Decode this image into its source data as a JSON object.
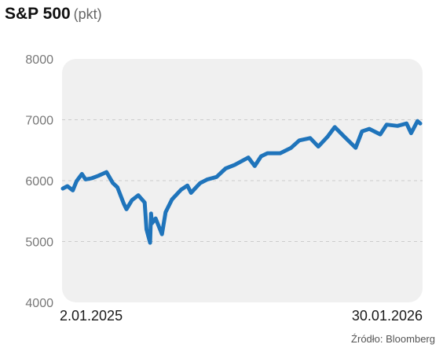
{
  "title": {
    "main": "S&P 500",
    "unit": "(pkt)"
  },
  "source": "Źródło: Bloomberg",
  "colors": {
    "line": "#1f74bb",
    "plot_bg": "#f0f0f0",
    "grid": "#cccccc",
    "tick_text": "#777777",
    "date_text": "#1a1a1a"
  },
  "chart_data": {
    "type": "line",
    "title": "S&P 500",
    "ylabel": "(pkt)",
    "xlabel": "",
    "ylim": [
      4000,
      8000
    ],
    "yticks": [
      4000,
      5000,
      6000,
      7000,
      8000
    ],
    "xlim": [
      "2025-01-02",
      "2026-01-30"
    ],
    "x_tick_labels": [
      "2.01.2025",
      "30.01.2026"
    ],
    "grid": "horizontal dashed",
    "series": [
      {
        "x": [
          "2025-01-02",
          "2025-01-07",
          "2025-01-13",
          "2025-01-17",
          "2025-01-23",
          "2025-01-27",
          "2025-02-03",
          "2025-02-10",
          "2025-02-19",
          "2025-02-26",
          "2025-03-03",
          "2025-03-10",
          "2025-03-13",
          "2025-03-19",
          "2025-03-26",
          "2025-04-02",
          "2025-04-04",
          "2025-04-08",
          "2025-04-09",
          "2025-04-10",
          "2025-04-14",
          "2025-04-21",
          "2025-04-25",
          "2025-05-02",
          "2025-05-12",
          "2025-05-19",
          "2025-05-23",
          "2025-06-02",
          "2025-06-10",
          "2025-06-20",
          "2025-06-30",
          "2025-07-10",
          "2025-07-25",
          "2025-08-01",
          "2025-08-08",
          "2025-08-15",
          "2025-08-29",
          "2025-09-10",
          "2025-09-19",
          "2025-10-01",
          "2025-10-10",
          "2025-10-20",
          "2025-10-28",
          "2025-11-07",
          "2025-11-20",
          "2025-11-27",
          "2025-12-05",
          "2025-12-17",
          "2025-12-24",
          "2026-01-05",
          "2026-01-15",
          "2026-01-20",
          "2026-01-27",
          "2026-01-30"
        ],
        "values": [
          5870,
          5910,
          5840,
          5990,
          6110,
          6020,
          6040,
          6080,
          6140,
          5960,
          5890,
          5620,
          5530,
          5680,
          5760,
          5640,
          5200,
          4980,
          5460,
          5300,
          5380,
          5120,
          5480,
          5690,
          5850,
          5920,
          5800,
          5960,
          6020,
          6060,
          6200,
          6260,
          6380,
          6240,
          6400,
          6450,
          6450,
          6540,
          6660,
          6700,
          6560,
          6720,
          6880,
          6730,
          6540,
          6810,
          6850,
          6760,
          6920,
          6900,
          6940,
          6780,
          6980,
          6940
        ]
      }
    ]
  }
}
